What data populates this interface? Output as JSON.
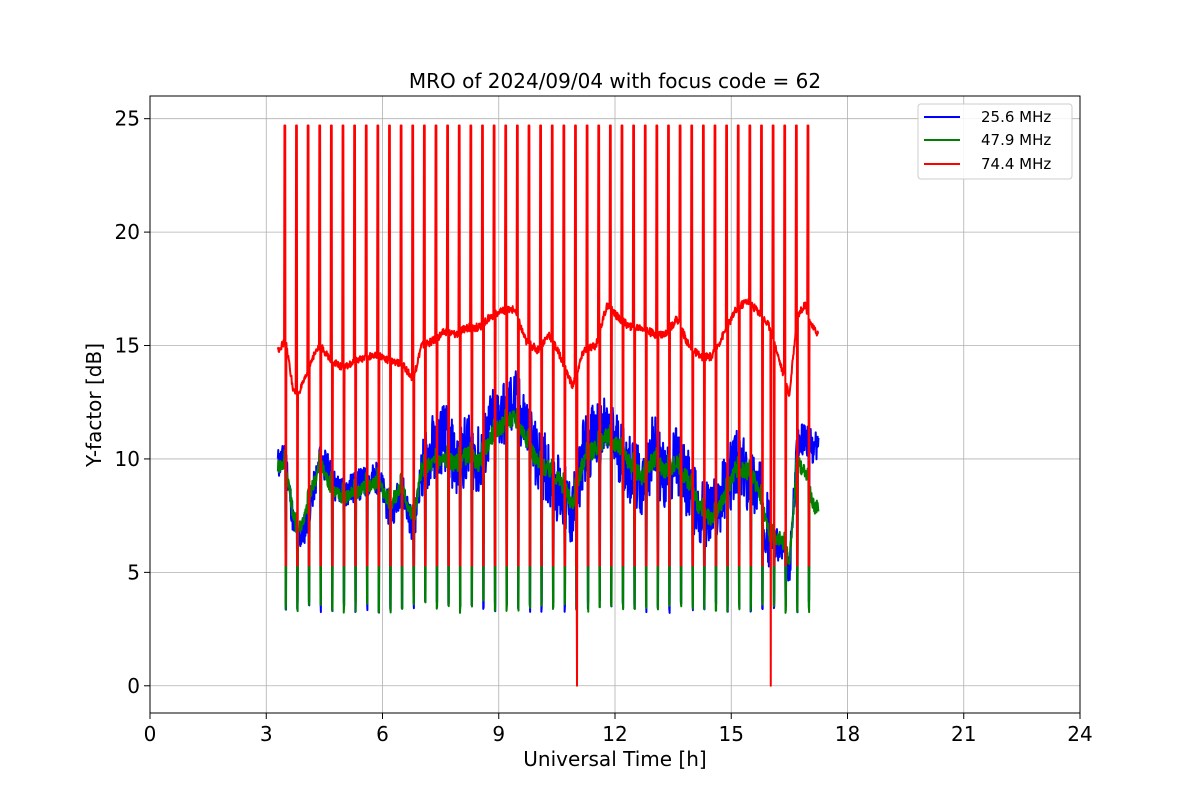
{
  "chart_data": {
    "type": "line",
    "title": "MRO of 2024/09/04 with focus code = 62",
    "xlabel": "Universal Time [h]",
    "ylabel": "Y-factor [dB]",
    "xlim": [
      0,
      24
    ],
    "ylim": [
      -1.2,
      26
    ],
    "xticks": [
      0,
      3,
      6,
      9,
      12,
      15,
      18,
      21,
      24
    ],
    "yticks": [
      0,
      5,
      10,
      15,
      20,
      25
    ],
    "grid": true,
    "legend_position": "top-right",
    "calibration_pulses": {
      "start_h": 3.48,
      "period_h": 0.3,
      "count": 47,
      "peak_db_74_4": 24.7,
      "trough_db": 3.2
    },
    "dropouts_to_zero_h": [
      11.02,
      16.02
    ],
    "series": [
      {
        "name": "25.6 MHz",
        "color": "#0000ff",
        "x": [
          3.3,
          3.5,
          3.7,
          3.8,
          4.0,
          4.2,
          4.4,
          4.6,
          4.8,
          5.0,
          5.3,
          5.6,
          5.9,
          6.2,
          6.5,
          6.8,
          7.0,
          7.3,
          7.6,
          7.9,
          8.2,
          8.5,
          8.8,
          9.1,
          9.4,
          9.7,
          10.0,
          10.3,
          10.6,
          10.9,
          11.2,
          11.5,
          11.8,
          12.1,
          12.4,
          12.7,
          13.0,
          13.3,
          13.6,
          13.9,
          14.2,
          14.5,
          14.8,
          15.1,
          15.4,
          15.7,
          16.0,
          16.3,
          16.5,
          16.7,
          16.9,
          17.1,
          17.25
        ],
        "values": [
          9.8,
          10.0,
          7.2,
          6.3,
          7.0,
          8.5,
          10.0,
          9.5,
          8.7,
          8.5,
          8.8,
          9.0,
          9.2,
          7.5,
          8.8,
          6.8,
          9.5,
          10.5,
          11.0,
          9.8,
          10.5,
          9.8,
          11.5,
          12.0,
          12.5,
          11.5,
          9.8,
          9.5,
          8.5,
          7.5,
          10.5,
          11.0,
          11.2,
          10.5,
          9.5,
          8.8,
          10.5,
          9.0,
          10.0,
          8.8,
          7.5,
          7.5,
          8.5,
          9.8,
          9.2,
          8.8,
          6.5,
          6.0,
          5.0,
          10.5,
          11.0,
          10.5,
          10.5
        ]
      },
      {
        "name": "47.9 MHz",
        "color": "#008000",
        "x": [
          3.3,
          3.5,
          3.7,
          3.8,
          4.0,
          4.2,
          4.4,
          4.6,
          4.8,
          5.0,
          5.3,
          5.6,
          5.9,
          6.2,
          6.5,
          6.8,
          7.0,
          7.3,
          7.6,
          7.9,
          8.2,
          8.5,
          8.8,
          9.1,
          9.4,
          9.7,
          10.0,
          10.3,
          10.6,
          10.9,
          11.2,
          11.5,
          11.8,
          12.1,
          12.4,
          12.7,
          13.0,
          13.3,
          13.6,
          13.9,
          14.2,
          14.5,
          14.8,
          15.1,
          15.4,
          15.7,
          16.0,
          16.3,
          16.5,
          16.7,
          16.9,
          17.1,
          17.25
        ],
        "values": [
          9.7,
          9.8,
          7.5,
          6.8,
          7.5,
          8.8,
          9.8,
          9.0,
          8.5,
          8.3,
          8.5,
          8.8,
          9.0,
          8.0,
          8.8,
          7.2,
          9.5,
          9.8,
          10.0,
          9.8,
          10.2,
          9.8,
          11.0,
          11.5,
          11.8,
          11.0,
          9.8,
          9.5,
          9.0,
          8.0,
          10.0,
          10.5,
          11.0,
          10.5,
          9.8,
          9.2,
          10.0,
          9.5,
          9.8,
          9.0,
          7.8,
          7.2,
          8.2,
          9.5,
          9.5,
          8.8,
          6.5,
          6.5,
          5.5,
          9.8,
          9.5,
          8.0,
          7.8
        ]
      },
      {
        "name": "74.4 MHz",
        "color": "#ff0000",
        "x": [
          3.3,
          3.5,
          3.7,
          3.8,
          4.0,
          4.2,
          4.4,
          4.6,
          4.8,
          5.0,
          5.3,
          5.6,
          5.9,
          6.2,
          6.5,
          6.8,
          7.0,
          7.3,
          7.6,
          7.9,
          8.2,
          8.5,
          8.8,
          9.1,
          9.4,
          9.7,
          10.0,
          10.3,
          10.6,
          10.9,
          11.2,
          11.5,
          11.8,
          12.1,
          12.4,
          12.7,
          13.0,
          13.3,
          13.6,
          13.9,
          14.2,
          14.5,
          14.8,
          15.1,
          15.4,
          15.7,
          16.0,
          16.3,
          16.5,
          16.7,
          16.9,
          17.1,
          17.25
        ],
        "values": [
          14.8,
          15.2,
          13.0,
          12.8,
          13.5,
          14.5,
          15.0,
          14.5,
          14.2,
          14.0,
          14.3,
          14.5,
          14.6,
          14.3,
          14.2,
          13.5,
          15.0,
          15.2,
          15.6,
          15.5,
          15.8,
          15.8,
          16.3,
          16.5,
          16.6,
          15.2,
          14.8,
          15.5,
          14.5,
          13.2,
          14.8,
          15.0,
          16.8,
          16.2,
          15.8,
          15.8,
          15.5,
          15.5,
          16.2,
          15.0,
          14.5,
          14.5,
          15.5,
          16.5,
          17.0,
          16.5,
          15.8,
          14.0,
          12.8,
          16.3,
          16.8,
          15.8,
          15.5
        ]
      }
    ]
  }
}
